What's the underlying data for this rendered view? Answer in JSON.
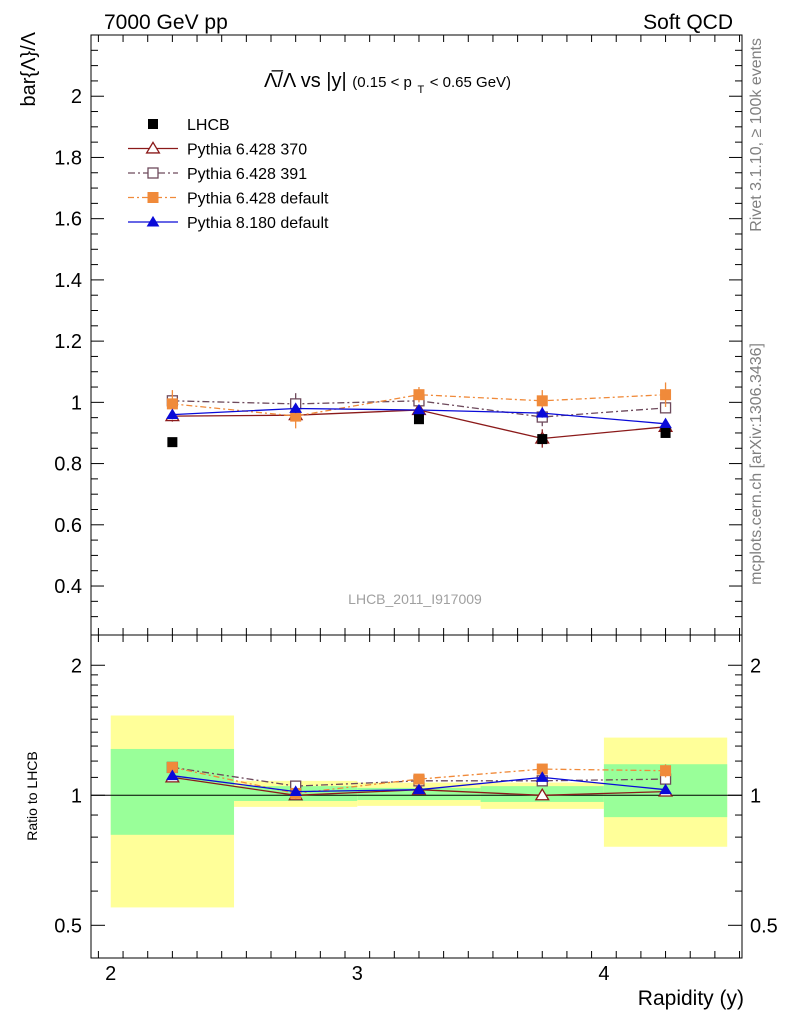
{
  "header": {
    "left": "7000 GeV pp",
    "right": "Soft QCD"
  },
  "side_labels": {
    "rivet": "Rivet 3.1.10, ≥ 100k events",
    "mcplots": "mcplots.cern.ch [arXiv:1306.3436]"
  },
  "chart_data": [
    {
      "type": "scatter",
      "title_parts": {
        "main": "Λ̅/Λ vs |y|",
        "cut_prefix": "(0.15 < p",
        "cut_sub": "T",
        "cut_suffix": " < 0.65 GeV)"
      },
      "ylabel": "bar{Λ}/Λ",
      "xlabel": "",
      "watermark": "LHCB_2011_I917009",
      "xlim": [
        1.92,
        4.56
      ],
      "ylim": [
        0.24,
        2.2
      ],
      "yticks": [
        0.4,
        0.6,
        0.8,
        1,
        1.2,
        1.4,
        1.6,
        1.8,
        2
      ],
      "ytick_labels": [
        "0.4",
        "0.6",
        "0.8",
        "1",
        "1.2",
        "1.4",
        "1.6",
        "1.8",
        "2"
      ],
      "x": [
        2.25,
        2.75,
        3.25,
        3.75,
        4.25
      ],
      "legend": {
        "position": "top-left",
        "entries": [
          "LHCB",
          "Pythia 6.428 370",
          "Pythia 6.428 391",
          "Pythia 6.428 default",
          "Pythia 8.180 default"
        ]
      },
      "series": [
        {
          "name": "LHCB",
          "marker": "filled-square",
          "color": "#000000",
          "values": [
            0.87,
            null,
            0.945,
            0.88,
            0.9
          ],
          "errors": [
            0,
            0,
            0,
            0,
            0
          ]
        },
        {
          "name": "Pythia 6.428 370",
          "marker": "open-triangle",
          "color": "#8b1a1a",
          "values": [
            0.955,
            0.958,
            0.975,
            0.882,
            0.92
          ],
          "errors": [
            0.018,
            0.02,
            0.018,
            0.03,
            0.018
          ]
        },
        {
          "name": "Pythia 6.428 391",
          "marker": "open-square",
          "color": "#6e4a5c",
          "values": [
            1.005,
            0.995,
            1.005,
            0.952,
            0.982
          ],
          "errors": [
            0.02,
            0.035,
            0.02,
            0.03,
            0.018
          ]
        },
        {
          "name": "Pythia 6.428 default",
          "marker": "filled-square",
          "color": "#f08a3a",
          "values": [
            0.995,
            0.955,
            1.025,
            1.005,
            1.025
          ],
          "errors": [
            0.045,
            0.04,
            0.025,
            0.035,
            0.04
          ]
        },
        {
          "name": "Pythia 8.180 default",
          "marker": "filled-triangle",
          "color": "#0a0ad8",
          "values": [
            0.96,
            0.98,
            0.975,
            0.965,
            0.93
          ],
          "errors": [
            0.015,
            0.015,
            0.015,
            0.015,
            0.015
          ]
        }
      ]
    },
    {
      "type": "scatter",
      "ylabel": "Ratio to LHCB",
      "xlabel": "Rapidity (y)",
      "xlim": [
        1.92,
        4.56
      ],
      "yscale": "log",
      "ylim": [
        0.42,
        2.35
      ],
      "yticks": [
        0.5,
        1,
        2
      ],
      "ytick_labels": [
        "0.5",
        "1",
        "2"
      ],
      "xticks": [
        2,
        3,
        4
      ],
      "xtick_labels": [
        "2",
        "3",
        "4"
      ],
      "x": [
        2.25,
        2.75,
        3.25,
        3.75,
        4.25
      ],
      "bands": {
        "bins": [
          [
            2.0,
            2.5
          ],
          [
            2.5,
            3.0
          ],
          [
            3.0,
            3.5
          ],
          [
            3.5,
            4.0
          ],
          [
            4.0,
            4.5
          ]
        ],
        "yellow": [
          [
            0.55,
            1.53
          ],
          [
            0.94,
            1.08
          ],
          [
            0.945,
            1.07
          ],
          [
            0.93,
            1.07
          ],
          [
            0.76,
            1.36
          ]
        ],
        "green": [
          [
            0.81,
            1.28
          ],
          [
            0.97,
            1.05
          ],
          [
            0.975,
            1.04
          ],
          [
            0.965,
            1.05
          ],
          [
            0.89,
            1.18
          ]
        ]
      },
      "series": [
        {
          "name": "Pythia 6.428 370",
          "marker": "open-triangle",
          "color": "#8b1a1a",
          "values": [
            1.1,
            1.0,
            1.03,
            1.0,
            1.02
          ],
          "errors": [
            0.02,
            0.02,
            0.02,
            0.025,
            0.02
          ]
        },
        {
          "name": "Pythia 6.428 391",
          "marker": "open-square",
          "color": "#6e4a5c",
          "values": [
            1.16,
            1.05,
            1.08,
            1.08,
            1.09
          ],
          "errors": [
            0.02,
            0.02,
            0.02,
            0.025,
            0.02
          ]
        },
        {
          "name": "Pythia 6.428 default",
          "marker": "filled-square",
          "color": "#f08a3a",
          "values": [
            1.16,
            1.01,
            1.09,
            1.15,
            1.14
          ],
          "errors": [
            0.03,
            0.03,
            0.03,
            0.03,
            0.04
          ]
        },
        {
          "name": "Pythia 8.180 default",
          "marker": "filled-triangle",
          "color": "#0a0ad8",
          "values": [
            1.11,
            1.02,
            1.03,
            1.1,
            1.03
          ],
          "errors": [
            0.015,
            0.015,
            0.015,
            0.015,
            0.015
          ]
        }
      ]
    }
  ]
}
